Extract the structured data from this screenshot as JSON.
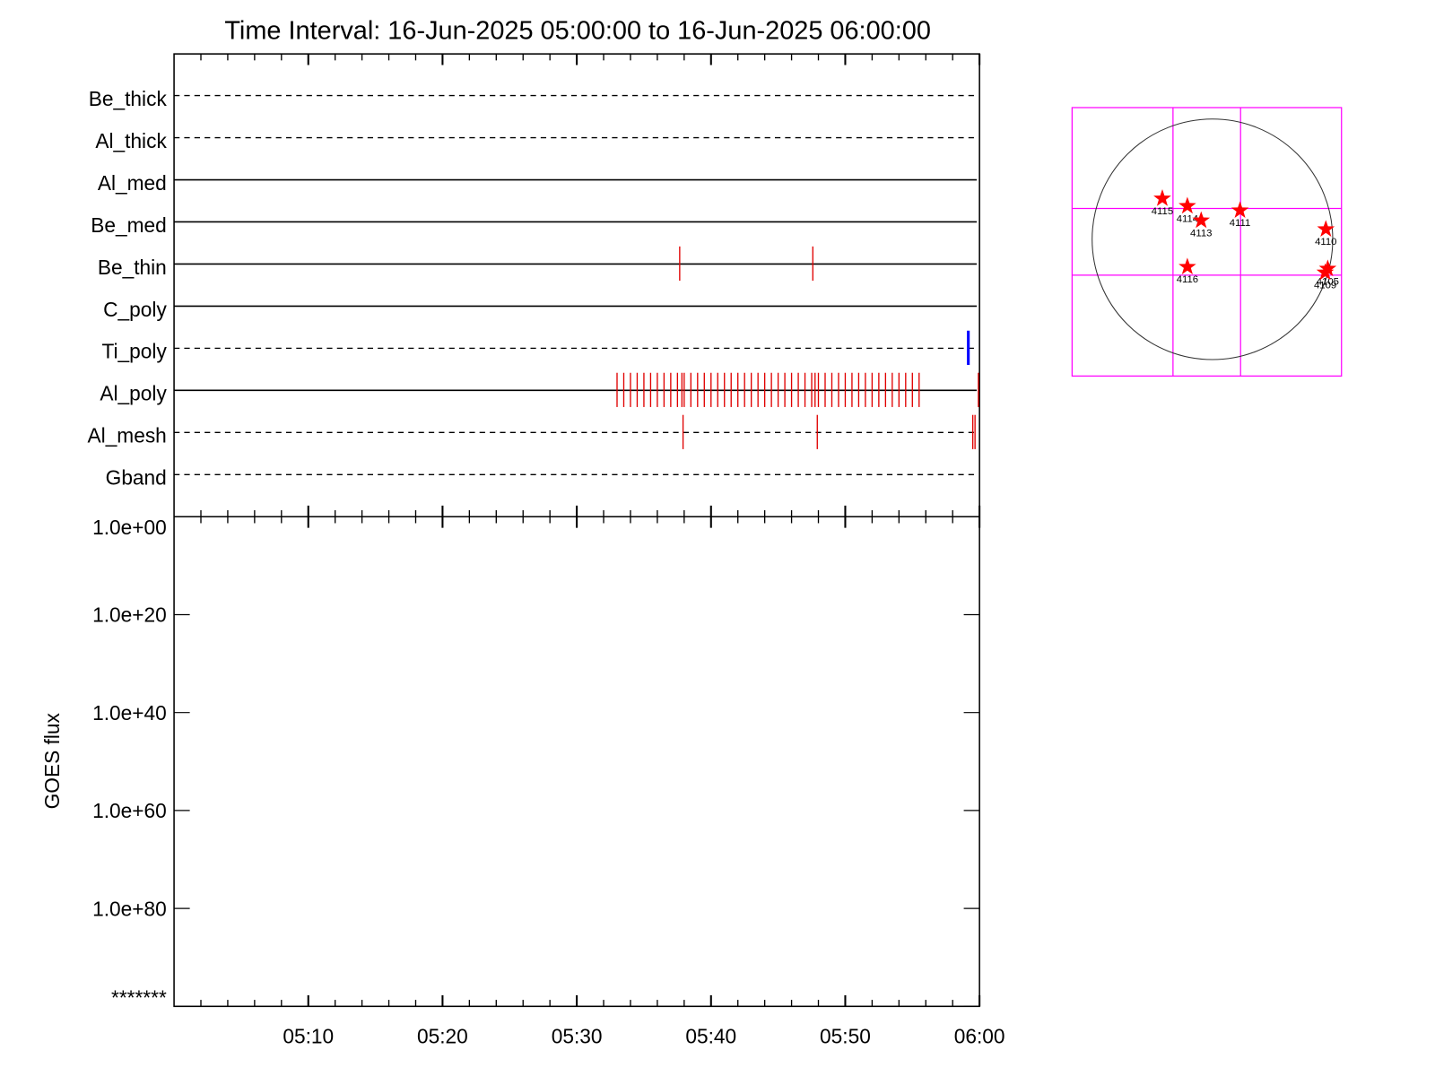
{
  "chart_data": [
    {
      "type": "timeline",
      "title": "Time Interval: 16-Jun-2025 05:00:00 to 16-Jun-2025 06:00:00",
      "series": [
        {
          "name": "Be_thick",
          "style": "dashed",
          "color": "#e00000",
          "events": []
        },
        {
          "name": "Al_thick",
          "style": "dashed",
          "color": "#e00000",
          "events": []
        },
        {
          "name": "Al_med",
          "style": "solid",
          "color": "#e00000",
          "events": []
        },
        {
          "name": "Be_med",
          "style": "solid",
          "color": "#e00000",
          "events": []
        },
        {
          "name": "Be_thin",
          "style": "solid",
          "color": "#e00000",
          "events": [
            "05:37:40",
            "05:47:35"
          ]
        },
        {
          "name": "C_poly",
          "style": "solid",
          "color": "#e00000",
          "events": []
        },
        {
          "name": "Ti_poly",
          "style": "dashed",
          "color": "#0000ff",
          "events": [
            "05:59:10"
          ]
        },
        {
          "name": "Al_poly",
          "style": "solid",
          "color": "#e00000",
          "events": [
            "05:33:00",
            "05:33:30",
            "05:34:00",
            "05:34:30",
            "05:35:00",
            "05:35:30",
            "05:36:00",
            "05:36:30",
            "05:37:00",
            "05:37:30",
            "05:37:50",
            "05:38:00",
            "05:38:30",
            "05:39:00",
            "05:39:30",
            "05:40:00",
            "05:40:30",
            "05:41:00",
            "05:41:30",
            "05:42:00",
            "05:42:30",
            "05:43:00",
            "05:43:30",
            "05:44:00",
            "05:44:30",
            "05:45:00",
            "05:45:30",
            "05:46:00",
            "05:46:30",
            "05:47:00",
            "05:47:30",
            "05:47:45",
            "05:48:00",
            "05:48:30",
            "05:49:00",
            "05:49:30",
            "05:50:00",
            "05:50:30",
            "05:51:00",
            "05:51:30",
            "05:52:00",
            "05:52:30",
            "05:53:00",
            "05:53:30",
            "05:54:00",
            "05:54:30",
            "05:55:00",
            "05:55:30",
            "05:59:55"
          ]
        },
        {
          "name": "Al_mesh",
          "style": "dashed",
          "color": "#e00000",
          "events": [
            "05:37:55",
            "05:47:55",
            "05:59:30",
            "05:59:40"
          ]
        },
        {
          "name": "Gband",
          "style": "dashed",
          "color": "#e00000",
          "events": []
        }
      ]
    },
    {
      "type": "log_axis",
      "ylabel": "GOES flux",
      "ylog": true,
      "ylim": [
        1,
        1e+100
      ],
      "yticks": [
        {
          "value": 1,
          "label": "1.0e+00"
        },
        {
          "value": 1e+20,
          "label": "1.0e+20"
        },
        {
          "value": 1e+40,
          "label": "1.0e+40"
        },
        {
          "value": 1e+60,
          "label": "1.0e+60"
        },
        {
          "value": 1e+80,
          "label": "1.0e+80"
        },
        {
          "value": 1e+100,
          "label": "*******"
        }
      ],
      "xlim": [
        "05:00",
        "06:00"
      ],
      "xticks": [
        "05:10",
        "05:20",
        "05:30",
        "05:40",
        "05:50",
        "06:00"
      ]
    },
    {
      "type": "sun_map",
      "xlim": [
        -1120,
        1030
      ],
      "ylim": [
        -1090,
        1050
      ],
      "radius": 960,
      "color": "#ff0000",
      "labels": [
        "4115",
        "4114",
        "4113",
        "4111",
        "4110",
        "4116",
        "4105",
        "4109"
      ],
      "x": [
        -400,
        -200,
        -90,
        220,
        905,
        -200,
        920,
        900
      ],
      "y": [
        325,
        265,
        150,
        230,
        80,
        -220,
        -235,
        -265
      ]
    }
  ]
}
